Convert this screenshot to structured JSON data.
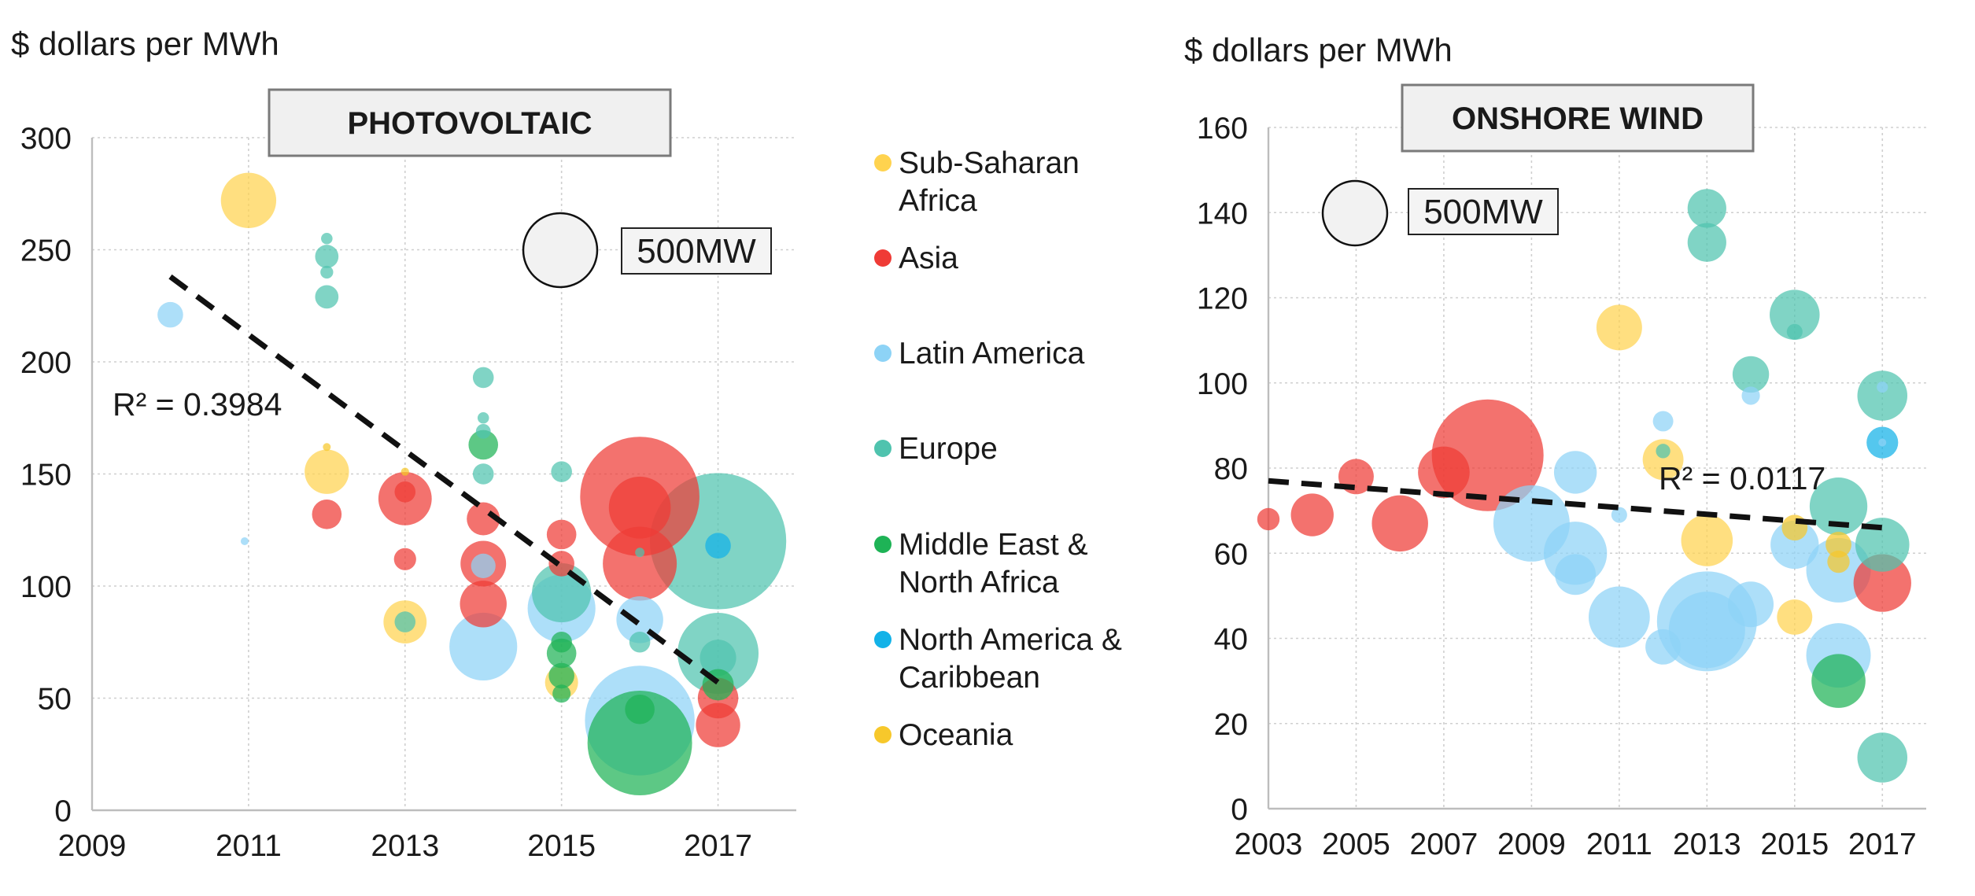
{
  "colors": {
    "ssa": "#FFD34F",
    "asia": "#EF3B36",
    "latam": "#8DD3F6",
    "europe": "#4FC3AE",
    "mena": "#1EB356",
    "na": "#12B2E8",
    "oceania": "#F7C82B"
  },
  "legend": [
    {
      "key": "ssa",
      "lines": [
        "Sub-Saharan",
        "Africa"
      ]
    },
    {
      "key": "asia",
      "lines": [
        "Asia"
      ]
    },
    {
      "key": "latam",
      "lines": [
        "Latin America"
      ]
    },
    {
      "key": "europe",
      "lines": [
        "Europe"
      ]
    },
    {
      "key": "mena",
      "lines": [
        "Middle East &",
        "North Africa"
      ]
    },
    {
      "key": "na",
      "lines": [
        "North America &",
        "Caribbean"
      ]
    },
    {
      "key": "oceania",
      "lines": [
        "Oceania"
      ]
    }
  ],
  "chart_data": [
    {
      "type": "scatter",
      "title": "PHOTOVOLTAIC",
      "ylabel": "$ dollars per MWh",
      "xlabel": "",
      "xlim": [
        2009,
        2018
      ],
      "ylim": [
        0,
        300
      ],
      "xticks": [
        "2009",
        "2011",
        "2013",
        "2015",
        "2017"
      ],
      "yticks": [
        "0",
        "50",
        "100",
        "150",
        "200",
        "250",
        "300"
      ],
      "size_legend_label": "500MW",
      "size_legend_mw": 500,
      "trendline": {
        "r2_label": "R² = 0.3984",
        "from": [
          2010,
          238
        ],
        "to": [
          2017,
          57
        ]
      },
      "points": [
        {
          "x": 2011,
          "y": 272,
          "mw": 280,
          "region": "ssa"
        },
        {
          "x": 2010,
          "y": 221,
          "mw": 60,
          "region": "latam"
        },
        {
          "x": 2010.95,
          "y": 120,
          "mw": 4,
          "region": "latam"
        },
        {
          "x": 2012,
          "y": 255,
          "mw": 12,
          "region": "europe"
        },
        {
          "x": 2012,
          "y": 247,
          "mw": 50,
          "region": "europe"
        },
        {
          "x": 2012,
          "y": 240,
          "mw": 15,
          "region": "europe"
        },
        {
          "x": 2012,
          "y": 229,
          "mw": 50,
          "region": "europe"
        },
        {
          "x": 2012,
          "y": 151,
          "mw": 180,
          "region": "ssa"
        },
        {
          "x": 2012,
          "y": 162,
          "mw": 5,
          "region": "oceania"
        },
        {
          "x": 2012,
          "y": 132,
          "mw": 80,
          "region": "asia"
        },
        {
          "x": 2013,
          "y": 139,
          "mw": 260,
          "region": "asia"
        },
        {
          "x": 2013,
          "y": 142,
          "mw": 40,
          "region": "asia"
        },
        {
          "x": 2013,
          "y": 151,
          "mw": 6,
          "region": "oceania"
        },
        {
          "x": 2013,
          "y": 112,
          "mw": 45,
          "region": "asia"
        },
        {
          "x": 2013,
          "y": 84,
          "mw": 170,
          "region": "ssa"
        },
        {
          "x": 2013,
          "y": 84,
          "mw": 40,
          "region": "europe"
        },
        {
          "x": 2014,
          "y": 193,
          "mw": 40,
          "region": "europe"
        },
        {
          "x": 2014,
          "y": 175,
          "mw": 12,
          "region": "europe"
        },
        {
          "x": 2014,
          "y": 169,
          "mw": 20,
          "region": "europe"
        },
        {
          "x": 2014,
          "y": 163,
          "mw": 80,
          "region": "mena"
        },
        {
          "x": 2014,
          "y": 150,
          "mw": 40,
          "region": "europe"
        },
        {
          "x": 2014,
          "y": 130,
          "mw": 100,
          "region": "asia"
        },
        {
          "x": 2014,
          "y": 110,
          "mw": 190,
          "region": "asia"
        },
        {
          "x": 2014,
          "y": 109,
          "mw": 55,
          "region": "latam"
        },
        {
          "x": 2014,
          "y": 92,
          "mw": 200,
          "region": "asia"
        },
        {
          "x": 2014,
          "y": 73,
          "mw": 420,
          "region": "latam"
        },
        {
          "x": 2015,
          "y": 151,
          "mw": 40,
          "region": "europe"
        },
        {
          "x": 2015,
          "y": 123,
          "mw": 80,
          "region": "asia"
        },
        {
          "x": 2015,
          "y": 110,
          "mw": 60,
          "region": "asia"
        },
        {
          "x": 2015,
          "y": 97,
          "mw": 320,
          "region": "europe"
        },
        {
          "x": 2015,
          "y": 90,
          "mw": 420,
          "region": "latam"
        },
        {
          "x": 2015,
          "y": 75,
          "mw": 40,
          "region": "mena"
        },
        {
          "x": 2015,
          "y": 70,
          "mw": 80,
          "region": "mena"
        },
        {
          "x": 2015,
          "y": 60,
          "mw": 60,
          "region": "mena"
        },
        {
          "x": 2015,
          "y": 57,
          "mw": 100,
          "region": "ssa"
        },
        {
          "x": 2015,
          "y": 52,
          "mw": 30,
          "region": "mena"
        },
        {
          "x": 2016,
          "y": 140,
          "mw": 1300,
          "region": "asia"
        },
        {
          "x": 2016,
          "y": 135,
          "mw": 350,
          "region": "asia"
        },
        {
          "x": 2016,
          "y": 115,
          "mw": 8,
          "region": "europe"
        },
        {
          "x": 2016,
          "y": 110,
          "mw": 500,
          "region": "asia"
        },
        {
          "x": 2016,
          "y": 85,
          "mw": 200,
          "region": "latam"
        },
        {
          "x": 2016,
          "y": 75,
          "mw": 40,
          "region": "europe"
        },
        {
          "x": 2016,
          "y": 40,
          "mw": 1100,
          "region": "latam"
        },
        {
          "x": 2016,
          "y": 30,
          "mw": 1000,
          "region": "mena"
        },
        {
          "x": 2016,
          "y": 45,
          "mw": 80,
          "region": "mena"
        },
        {
          "x": 2017,
          "y": 120,
          "mw": 1700,
          "region": "europe"
        },
        {
          "x": 2017,
          "y": 118,
          "mw": 60,
          "region": "na"
        },
        {
          "x": 2017,
          "y": 70,
          "mw": 600,
          "region": "europe"
        },
        {
          "x": 2017,
          "y": 68,
          "mw": 120,
          "region": "europe"
        },
        {
          "x": 2017,
          "y": 50,
          "mw": 150,
          "region": "asia"
        },
        {
          "x": 2017,
          "y": 38,
          "mw": 180,
          "region": "asia"
        },
        {
          "x": 2017,
          "y": 56,
          "mw": 90,
          "region": "mena"
        }
      ]
    },
    {
      "type": "scatter",
      "title": "ONSHORE WIND",
      "ylabel": "$ dollars per MWh",
      "xlabel": "",
      "xlim": [
        2003,
        2018
      ],
      "ylim": [
        0,
        160
      ],
      "xticks": [
        "2003",
        "2005",
        "2007",
        "2009",
        "2011",
        "2013",
        "2015",
        "2017"
      ],
      "yticks": [
        "0",
        "20",
        "40",
        "60",
        "80",
        "100",
        "120",
        "140",
        "160"
      ],
      "size_legend_label": "500MW",
      "size_legend_mw": 500,
      "trendline": {
        "r2_label": "R² = 0.0117",
        "from": [
          2003,
          77
        ],
        "to": [
          2017,
          66
        ]
      },
      "points": [
        {
          "x": 2003,
          "y": 68,
          "mw": 60,
          "region": "asia"
        },
        {
          "x": 2004,
          "y": 69,
          "mw": 220,
          "region": "asia"
        },
        {
          "x": 2005,
          "y": 78,
          "mw": 150,
          "region": "asia"
        },
        {
          "x": 2006,
          "y": 67,
          "mw": 380,
          "region": "asia"
        },
        {
          "x": 2007,
          "y": 79,
          "mw": 320,
          "region": "asia"
        },
        {
          "x": 2008,
          "y": 83,
          "mw": 1500,
          "region": "asia"
        },
        {
          "x": 2009,
          "y": 67,
          "mw": 700,
          "region": "latam"
        },
        {
          "x": 2010,
          "y": 79,
          "mw": 220,
          "region": "latam"
        },
        {
          "x": 2010,
          "y": 60,
          "mw": 480,
          "region": "latam"
        },
        {
          "x": 2010,
          "y": 55,
          "mw": 200,
          "region": "latam"
        },
        {
          "x": 2011,
          "y": 113,
          "mw": 250,
          "region": "ssa"
        },
        {
          "x": 2011,
          "y": 69,
          "mw": 30,
          "region": "latam"
        },
        {
          "x": 2011,
          "y": 45,
          "mw": 450,
          "region": "latam"
        },
        {
          "x": 2012,
          "y": 91,
          "mw": 50,
          "region": "latam"
        },
        {
          "x": 2012,
          "y": 82,
          "mw": 200,
          "region": "ssa"
        },
        {
          "x": 2012,
          "y": 84,
          "mw": 25,
          "region": "europe"
        },
        {
          "x": 2012,
          "y": 38,
          "mw": 150,
          "region": "latam"
        },
        {
          "x": 2013,
          "y": 141,
          "mw": 180,
          "region": "europe"
        },
        {
          "x": 2013,
          "y": 133,
          "mw": 180,
          "region": "europe"
        },
        {
          "x": 2013,
          "y": 63,
          "mw": 320,
          "region": "ssa"
        },
        {
          "x": 2013,
          "y": 44,
          "mw": 1200,
          "region": "latam"
        },
        {
          "x": 2013,
          "y": 42,
          "mw": 700,
          "region": "latam"
        },
        {
          "x": 2014,
          "y": 102,
          "mw": 160,
          "region": "europe"
        },
        {
          "x": 2014,
          "y": 97,
          "mw": 40,
          "region": "latam"
        },
        {
          "x": 2014,
          "y": 48,
          "mw": 250,
          "region": "latam"
        },
        {
          "x": 2015,
          "y": 116,
          "mw": 300,
          "region": "europe"
        },
        {
          "x": 2015,
          "y": 112,
          "mw": 30,
          "region": "europe"
        },
        {
          "x": 2015,
          "y": 66,
          "mw": 80,
          "region": "oceania"
        },
        {
          "x": 2015,
          "y": 62,
          "mw": 280,
          "region": "latam"
        },
        {
          "x": 2015,
          "y": 45,
          "mw": 150,
          "region": "ssa"
        },
        {
          "x": 2016,
          "y": 71,
          "mw": 400,
          "region": "europe"
        },
        {
          "x": 2016,
          "y": 62,
          "mw": 80,
          "region": "oceania"
        },
        {
          "x": 2016,
          "y": 58,
          "mw": 60,
          "region": "oceania"
        },
        {
          "x": 2016,
          "y": 56,
          "mw": 500,
          "region": "latam"
        },
        {
          "x": 2016,
          "y": 36,
          "mw": 500,
          "region": "latam"
        },
        {
          "x": 2016,
          "y": 30,
          "mw": 350,
          "region": "mena"
        },
        {
          "x": 2017,
          "y": 97,
          "mw": 300,
          "region": "europe"
        },
        {
          "x": 2017,
          "y": 99,
          "mw": 15,
          "region": "latam"
        },
        {
          "x": 2017,
          "y": 86,
          "mw": 120,
          "region": "na"
        },
        {
          "x": 2017,
          "y": 86,
          "mw": 5,
          "region": "latam"
        },
        {
          "x": 2017,
          "y": 62,
          "mw": 350,
          "region": "europe"
        },
        {
          "x": 2017,
          "y": 53,
          "mw": 400,
          "region": "asia"
        },
        {
          "x": 2017,
          "y": 12,
          "mw": 300,
          "region": "europe"
        }
      ]
    }
  ]
}
